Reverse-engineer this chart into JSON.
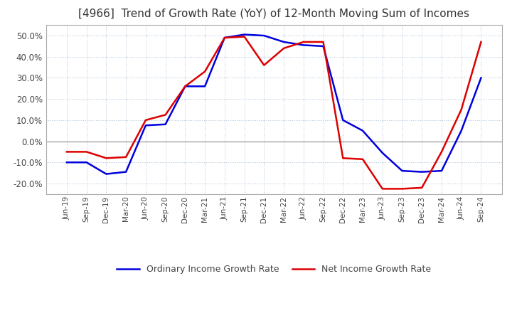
{
  "title": "[4966]  Trend of Growth Rate (YoY) of 12-Month Moving Sum of Incomes",
  "title_fontsize": 11,
  "background_color": "#ffffff",
  "grid_color": "#b0c4d8",
  "ylim": [
    -25,
    55
  ],
  "yticks": [
    -20,
    -10,
    0,
    10,
    20,
    30,
    40,
    50
  ],
  "ordinary_color": "#0000dd",
  "net_color": "#dd0000",
  "line_width": 1.8,
  "legend_labels": [
    "Ordinary Income Growth Rate",
    "Net Income Growth Rate"
  ],
  "x_labels": [
    "Jun-19",
    "Sep-19",
    "Dec-19",
    "Mar-20",
    "Jun-20",
    "Sep-20",
    "Dec-20",
    "Mar-21",
    "Jun-21",
    "Sep-21",
    "Dec-21",
    "Mar-22",
    "Jun-22",
    "Sep-22",
    "Dec-22",
    "Mar-23",
    "Jun-23",
    "Sep-23",
    "Dec-23",
    "Mar-24",
    "Jun-24",
    "Sep-24"
  ],
  "ordinary_income_growth": [
    -10.0,
    -10.0,
    -15.5,
    -14.5,
    7.5,
    8.0,
    26.0,
    26.0,
    49.0,
    50.5,
    50.0,
    47.0,
    45.5,
    45.0,
    10.0,
    5.0,
    -5.5,
    -14.0,
    -14.5,
    -14.0,
    5.0,
    30.0
  ],
  "net_income_growth": [
    -5.0,
    -5.0,
    -8.0,
    -7.5,
    10.0,
    12.5,
    26.0,
    33.0,
    49.0,
    49.5,
    36.0,
    44.0,
    47.0,
    47.0,
    -8.0,
    -8.5,
    -22.5,
    -22.5,
    -22.0,
    -5.0,
    15.0,
    47.0
  ]
}
